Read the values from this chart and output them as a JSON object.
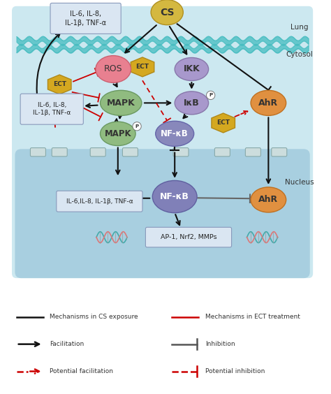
{
  "title": "",
  "fig_width": 4.74,
  "fig_height": 5.64,
  "dpi": 100,
  "bg_color": "#ffffff",
  "lung_label": "Lung",
  "cytosol_label": "Cytosol",
  "nucleus_label": "Nucleus",
  "cytosol_color": "#cce8f0",
  "nucleus_color": "#a8cfe0",
  "membrane_color": "#55c0c8",
  "cs_color": "#d4b840",
  "ros_color": "#e88090",
  "ect_color": "#d4a820",
  "mapk_color": "#90bb80",
  "ikk_color": "#a898cc",
  "ikb_color": "#a898cc",
  "nfkb_color": "#8888bb",
  "ahr_color": "#e09040",
  "box_color": "#dae6f2",
  "box_ec": "#8899bb"
}
